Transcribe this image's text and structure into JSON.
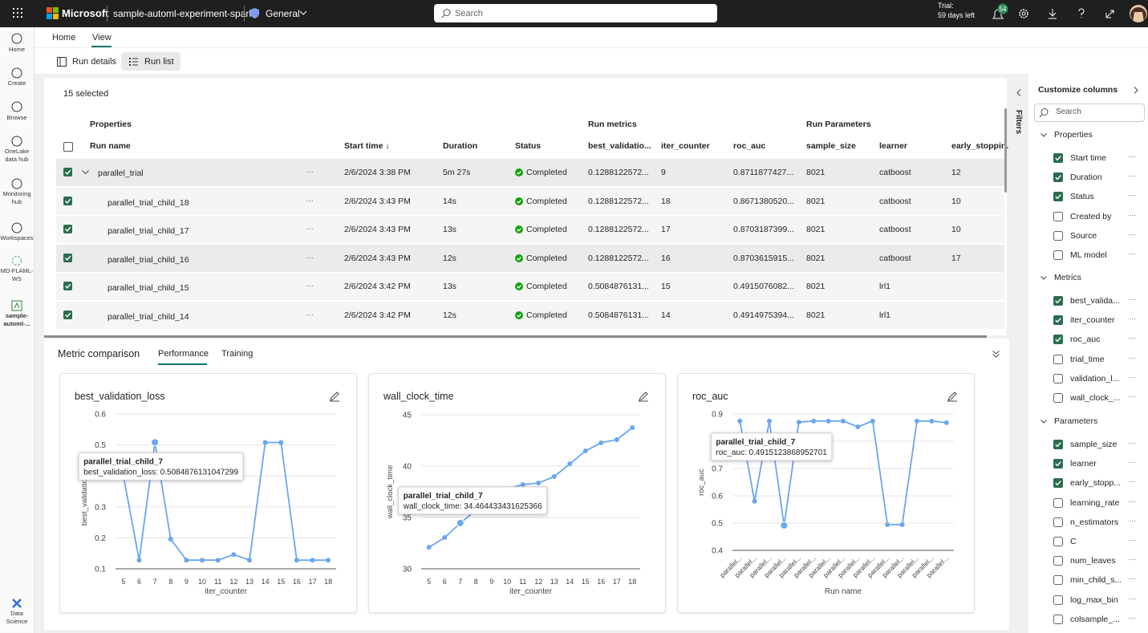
{
  "topbar": {
    "brand": "Microsoft",
    "workspace": "sample-automl-experiment-spark",
    "channel": "General",
    "search": "Search",
    "trial": "Trial:",
    "trial_left": "59 days left",
    "badge": "54"
  },
  "nav": [
    "Home",
    "Create",
    "Browse",
    "OneLake data hub",
    "Monitoring hub",
    "Workspaces",
    "MD-FLAML-WS",
    "sample-automl-...",
    "Data Science"
  ],
  "tabs": [
    "Home",
    "View"
  ],
  "toolbar": [
    "Run details",
    "Run list"
  ],
  "table": {
    "selected": "15 selected",
    "groups": [
      "Properties",
      "Run metrics",
      "Run Parameters"
    ],
    "columns": [
      "Run name",
      "Start time ↓",
      "Duration",
      "Status",
      "best_validatio...",
      "iter_counter",
      "roc_auc",
      "sample_size",
      "learner",
      "early_stoppin..."
    ],
    "rows": [
      [
        "parallel_trial",
        "2/6/2024 3:38 PM",
        "5m 27s",
        "Completed",
        "0.1288122572...",
        9,
        "0.8711877427...",
        8021,
        "catboost",
        12
      ],
      [
        "parallel_trial_child_18",
        "2/6/2024 3:43 PM",
        "14s",
        "Completed",
        "0.1288122572...",
        18,
        "0.8671380520...",
        8021,
        "catboost",
        10
      ],
      [
        "parallel_trial_child_17",
        "2/6/2024 3:43 PM",
        "13s",
        "Completed",
        "0.1288122572...",
        17,
        "0.8703187399...",
        8021,
        "catboost",
        10
      ],
      [
        "parallel_trial_child_16",
        "2/6/2024 3:43 PM",
        "12s",
        "Completed",
        "0.1288122572...",
        16,
        "0.8703615915...",
        8021,
        "catboost",
        17
      ],
      [
        "parallel_trial_child_15",
        "2/6/2024 3:42 PM",
        "13s",
        "Completed",
        "0.5084876131...",
        15,
        "0.4915076082...",
        8021,
        "lrl1",
        null
      ],
      [
        "parallel_trial_child_14",
        "2/6/2024 3:42 PM",
        "12s",
        "Completed",
        "0.5084876131...",
        14,
        "0.4914975394...",
        8021,
        "lrl1",
        null
      ]
    ]
  },
  "metric_comparison": {
    "title": "Metric comparison",
    "tabs": [
      "Performance",
      "Training"
    ]
  },
  "chart_data": [
    {
      "type": "line",
      "title": "best_validation_loss",
      "x_label": "iter_counter",
      "y_label": "best_validation_loss",
      "color": "#6aa7ee",
      "x": [
        5,
        6,
        7,
        8,
        9,
        10,
        11,
        12,
        13,
        14,
        15,
        16,
        17,
        18
      ],
      "values": [
        0.4,
        0.128,
        0.5084876131047299,
        0.196,
        0.128,
        0.128,
        0.128,
        0.146,
        0.128,
        0.508,
        0.508,
        0.128,
        0.128,
        0.128
      ],
      "xlim": [
        4.5,
        18.5
      ],
      "xticks": [
        5,
        6,
        7,
        8,
        9,
        10,
        11,
        12,
        13,
        14,
        15,
        16,
        17,
        18
      ],
      "ylim": [
        0.1,
        0.6
      ],
      "yticks": [
        0.1,
        0.2,
        0.3,
        0.4,
        0.5,
        0.6
      ],
      "tooltip": {
        "index": 2,
        "title": "parallel_trial_child_7",
        "text": "best_validation_loss: 0.5084876131047299"
      }
    },
    {
      "type": "line",
      "title": "wall_clock_time",
      "x_label": "iter_counter",
      "y_label": "wall_clock_time",
      "color": "#6aa7ee",
      "x": [
        5,
        6,
        7,
        8,
        9,
        10,
        11,
        12,
        13,
        14,
        15,
        16,
        17,
        18
      ],
      "values": [
        32.1,
        33.05,
        34.464433431625366,
        35.7,
        36.9,
        37.8,
        38.2,
        38.36,
        38.98,
        40.23,
        41.48,
        42.27,
        42.58,
        43.75
      ],
      "xlim": [
        4.5,
        18.5
      ],
      "xticks": [
        5,
        6,
        7,
        8,
        9,
        10,
        11,
        12,
        13,
        14,
        15,
        16,
        17,
        18
      ],
      "ylim": [
        30,
        45
      ],
      "yticks": [
        30,
        35,
        40,
        45
      ],
      "tooltip": {
        "index": 2,
        "title": "parallel_trial_child_7",
        "text": "wall_clock_time: 34.464433431625366"
      }
    },
    {
      "type": "line",
      "title": "roc_auc",
      "x_label": "Run name",
      "y_label": "roc_auc",
      "color": "#6aa7ee",
      "categories": [
        "parallel...",
        "parallel...",
        "parallel...",
        "parallel...",
        "parallel...",
        "parallel...",
        "parallel...",
        "parallel...",
        "parallel...",
        "parallel...",
        "parallel...",
        "parallel...",
        "parallel...",
        "parallel...",
        "parallel..."
      ],
      "values": [
        0.874,
        0.58,
        0.874,
        0.4915123868952701,
        0.87,
        0.874,
        0.874,
        0.874,
        0.853,
        0.874,
        0.494,
        0.494,
        0.874,
        0.874,
        0.868
      ],
      "ylim": [
        0.4,
        0.9
      ],
      "yticks": [
        0.4,
        0.5,
        0.6,
        0.7,
        0.8,
        0.9
      ],
      "tooltip": {
        "index": 3,
        "title": "parallel_trial_child_7",
        "text": "roc_auc: 0.4915123868952701"
      }
    }
  ],
  "columns_panel": {
    "filters": "Filters",
    "title": "Customize columns",
    "search": "Search",
    "groups": [
      {
        "name": "Properties",
        "items": [
          {
            "label": "Start time",
            "checked": true
          },
          {
            "label": "Duration",
            "checked": true
          },
          {
            "label": "Status",
            "checked": true
          },
          {
            "label": "Created by",
            "checked": false
          },
          {
            "label": "Source",
            "checked": false
          },
          {
            "label": "ML model",
            "checked": false
          }
        ]
      },
      {
        "name": "Metrics",
        "items": [
          {
            "label": "best_valida...",
            "checked": true
          },
          {
            "label": "iter_counter",
            "checked": true
          },
          {
            "label": "roc_auc",
            "checked": true
          },
          {
            "label": "trial_time",
            "checked": false
          },
          {
            "label": "validation_l...",
            "checked": false
          },
          {
            "label": "wall_clock_...",
            "checked": false
          }
        ]
      },
      {
        "name": "Parameters",
        "items": [
          {
            "label": "sample_size",
            "checked": true
          },
          {
            "label": "learner",
            "checked": true
          },
          {
            "label": "early_stopp...",
            "checked": true
          },
          {
            "label": "learning_rate",
            "checked": false
          },
          {
            "label": "n_estimators",
            "checked": false
          },
          {
            "label": "C",
            "checked": false
          },
          {
            "label": "num_leaves",
            "checked": false
          },
          {
            "label": "min_child_s...",
            "checked": false
          },
          {
            "label": "log_max_bin",
            "checked": false
          },
          {
            "label": "colsample_...",
            "checked": false
          }
        ]
      }
    ]
  }
}
